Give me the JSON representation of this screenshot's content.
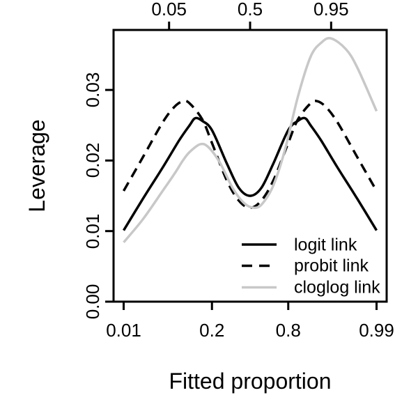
{
  "chart_data": {
    "type": "line",
    "title": "",
    "xlabel": "Fitted proportion",
    "ylabel": "Leverage",
    "x_scale": "logit",
    "xlim": [
      0.01,
      0.99
    ],
    "ylim": [
      0,
      0.0385
    ],
    "grid": false,
    "frame": {
      "color": "#000000"
    },
    "axes": {
      "bottom_ticks": {
        "values": [
          0.01,
          0.2,
          0.8,
          0.99
        ],
        "labels": [
          "0.01",
          "0.2",
          "0.8",
          "0.99"
        ]
      },
      "top_ticks": {
        "values": [
          0.05,
          0.5,
          0.95
        ],
        "labels": [
          "0.05",
          "0.5",
          "0.95"
        ]
      },
      "left_ticks": {
        "values": [
          0.0,
          0.01,
          0.02,
          0.03
        ],
        "labels": [
          "0.00",
          "0.01",
          "0.02",
          "0.03"
        ]
      }
    },
    "legend": {
      "position": "inside-bottom-right"
    },
    "series": [
      {
        "name": "logit link",
        "color": "#000000",
        "style": "solid",
        "x": [
          0.01,
          0.02,
          0.04,
          0.07,
          0.1,
          0.12,
          0.15,
          0.2,
          0.3,
          0.4,
          0.5,
          0.6,
          0.7,
          0.8,
          0.85,
          0.88,
          0.9,
          0.93,
          0.96,
          0.98,
          0.99
        ],
        "y": [
          0.0101,
          0.0146,
          0.019,
          0.0228,
          0.025,
          0.026,
          0.0256,
          0.0243,
          0.0196,
          0.0161,
          0.015,
          0.0161,
          0.0196,
          0.0243,
          0.0256,
          0.026,
          0.025,
          0.0228,
          0.019,
          0.0146,
          0.0101
        ]
      },
      {
        "name": "probit link",
        "color": "#000000",
        "style": "dashed",
        "x": [
          0.01,
          0.02,
          0.04,
          0.06,
          0.08,
          0.1,
          0.15,
          0.2,
          0.3,
          0.4,
          0.5,
          0.6,
          0.7,
          0.8,
          0.85,
          0.9,
          0.92,
          0.94,
          0.96,
          0.98,
          0.99
        ],
        "y": [
          0.0157,
          0.0205,
          0.0254,
          0.0276,
          0.0284,
          0.0281,
          0.0258,
          0.0225,
          0.0172,
          0.0143,
          0.0133,
          0.0143,
          0.0172,
          0.0225,
          0.0258,
          0.0281,
          0.0284,
          0.0276,
          0.0254,
          0.0205,
          0.0157
        ]
      },
      {
        "name": "cloglog link",
        "color": "#c8c8c8",
        "style": "solid",
        "x": [
          0.01,
          0.02,
          0.04,
          0.06,
          0.08,
          0.1,
          0.14,
          0.18,
          0.25,
          0.35,
          0.45,
          0.55,
          0.62,
          0.7,
          0.78,
          0.85,
          0.9,
          0.93,
          0.95,
          0.97,
          0.98,
          0.99
        ],
        "y": [
          0.0084,
          0.0117,
          0.0157,
          0.0181,
          0.02,
          0.0212,
          0.0223,
          0.0219,
          0.0197,
          0.016,
          0.0139,
          0.0133,
          0.0141,
          0.0165,
          0.0215,
          0.029,
          0.0347,
          0.0367,
          0.0373,
          0.0358,
          0.0332,
          0.027
        ]
      }
    ]
  }
}
